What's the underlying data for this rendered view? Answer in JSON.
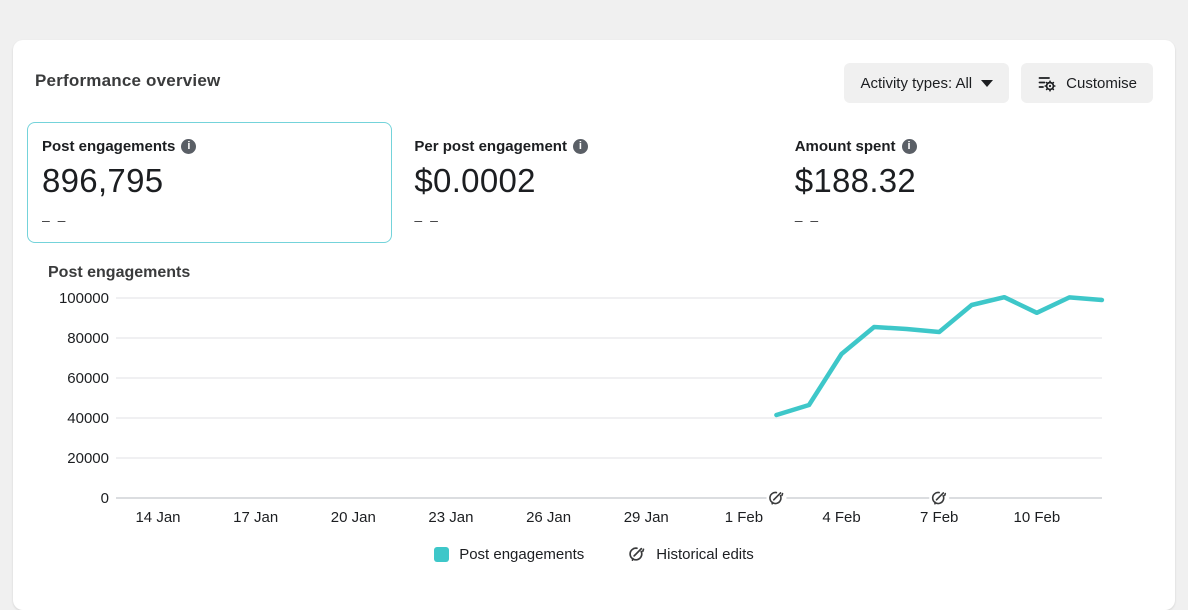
{
  "panel": {
    "title": "Performance overview"
  },
  "toolbar": {
    "activity_types_label": "Activity types: All",
    "customise_label": "Customise"
  },
  "metrics": [
    {
      "label": "Post engagements",
      "info_icon": "info-icon",
      "value": "896,795",
      "sub": "– –",
      "selected": true
    },
    {
      "label": "Per post engagement",
      "info_icon": "info-icon",
      "value": "$0.0002",
      "sub": "– –",
      "selected": false
    },
    {
      "label": "Amount spent",
      "info_icon": "info-icon",
      "value": "$188.32",
      "sub": "– –",
      "selected": false
    }
  ],
  "chart_section_title": "Post engagements",
  "chart_data": {
    "type": "line",
    "title": "Post engagements",
    "series_name": "Post engagements",
    "line_color": "#3ec7c9",
    "grid": "horizontal",
    "legend_position": "bottom",
    "ylim": [
      0,
      100000
    ],
    "y_ticks": [
      0,
      20000,
      40000,
      60000,
      80000,
      100000
    ],
    "x_tick_labels": [
      "14 Jan",
      "17 Jan",
      "20 Jan",
      "23 Jan",
      "26 Jan",
      "29 Jan",
      "1 Feb",
      "4 Feb",
      "7 Feb",
      "10 Feb"
    ],
    "x_range_visible": [
      "13 Jan",
      "12 Feb"
    ],
    "points": [
      {
        "date": "2 Feb",
        "value": 41500
      },
      {
        "date": "3 Feb",
        "value": 46500
      },
      {
        "date": "4 Feb",
        "value": 72000
      },
      {
        "date": "5 Feb",
        "value": 85500
      },
      {
        "date": "6 Feb",
        "value": 84500
      },
      {
        "date": "7 Feb",
        "value": 83000
      },
      {
        "date": "8 Feb",
        "value": 96500
      },
      {
        "date": "9 Feb",
        "value": 100400
      },
      {
        "date": "10 Feb",
        "value": 92600
      },
      {
        "date": "11 Feb",
        "value": 100300
      },
      {
        "date": "12 Feb",
        "value": 99000
      }
    ],
    "historical_edits": [
      "2 Feb",
      "7 Feb"
    ]
  },
  "legend": {
    "series_label": "Post engagements",
    "edits_label": "Historical edits"
  },
  "colors": {
    "accent_teal": "#3ec7c9",
    "selected_card_border": "#74d3da",
    "grid_line": "#e6e8ea",
    "axis_line": "#cfd2d6",
    "text_dark": "#1c1e21"
  }
}
